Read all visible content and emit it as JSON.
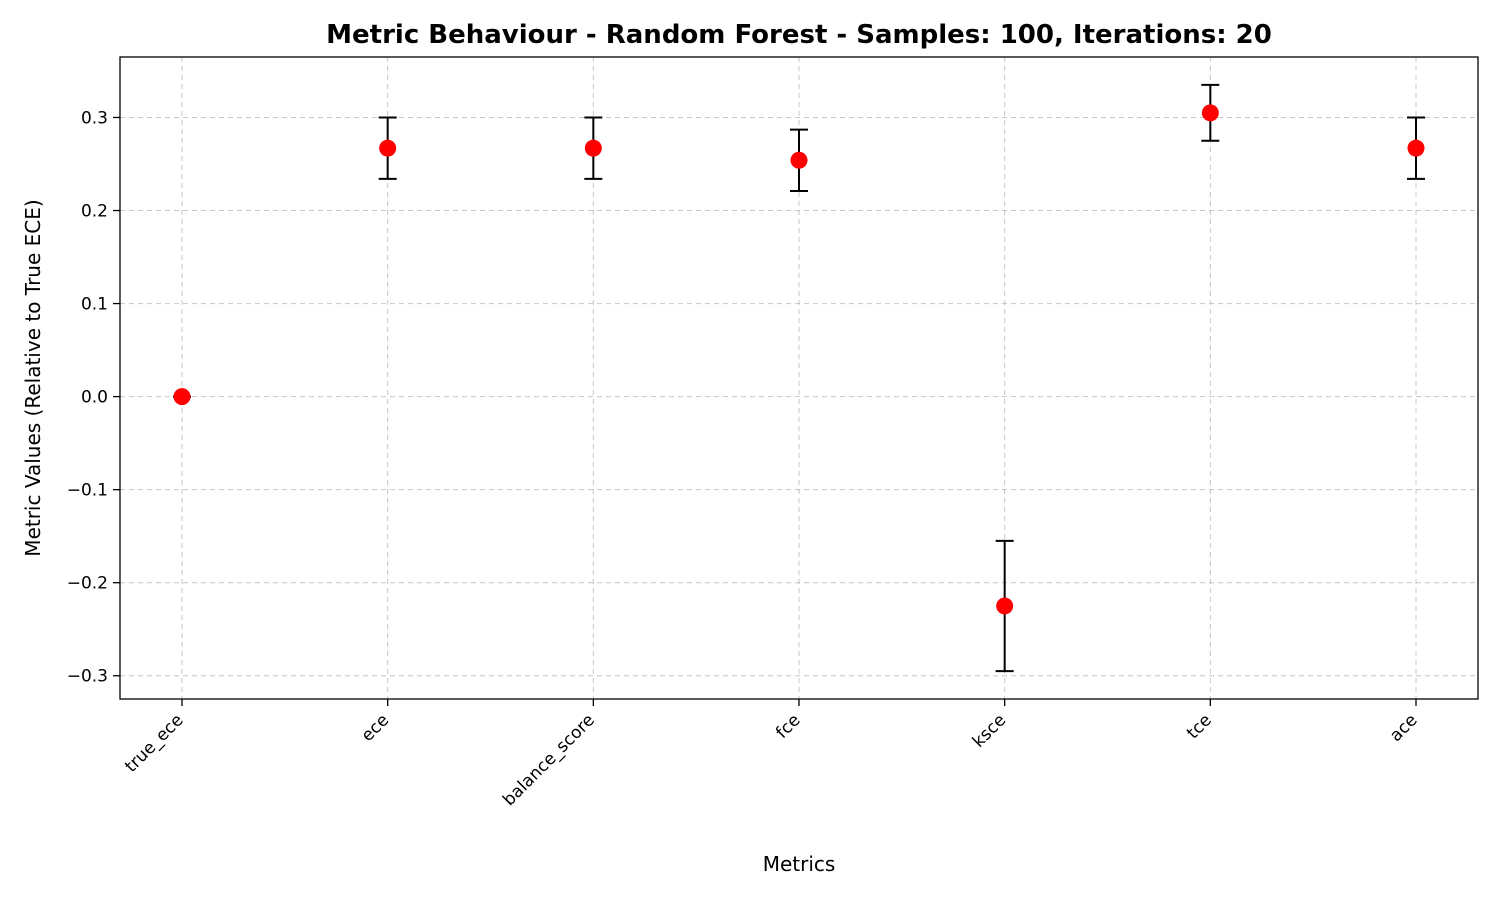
{
  "chart_data": {
    "type": "scatter",
    "title": "Metric Behaviour - Random Forest - Samples: 100, Iterations: 20",
    "xlabel": "Metrics",
    "ylabel": "Metric Values (Relative to True ECE)",
    "categories": [
      "true_ece",
      "ece",
      "balance_score",
      "fce",
      "ksce",
      "tce",
      "ace"
    ],
    "values": [
      0.0,
      0.267,
      0.267,
      0.254,
      -0.225,
      0.305,
      0.267
    ],
    "error": [
      0.0,
      0.033,
      0.033,
      0.033,
      0.07,
      0.03,
      0.033
    ],
    "ylim": [
      -0.325,
      0.365
    ],
    "yticks": [
      -0.3,
      -0.2,
      -0.1,
      0.0,
      0.1,
      0.2,
      0.3
    ],
    "ytick_labels": [
      "−0.3",
      "−0.2",
      "−0.1",
      "0.0",
      "0.1",
      "0.2",
      "0.3"
    ],
    "grid": true,
    "marker_color": "#ff0000",
    "errorbar_color": "#000000"
  }
}
